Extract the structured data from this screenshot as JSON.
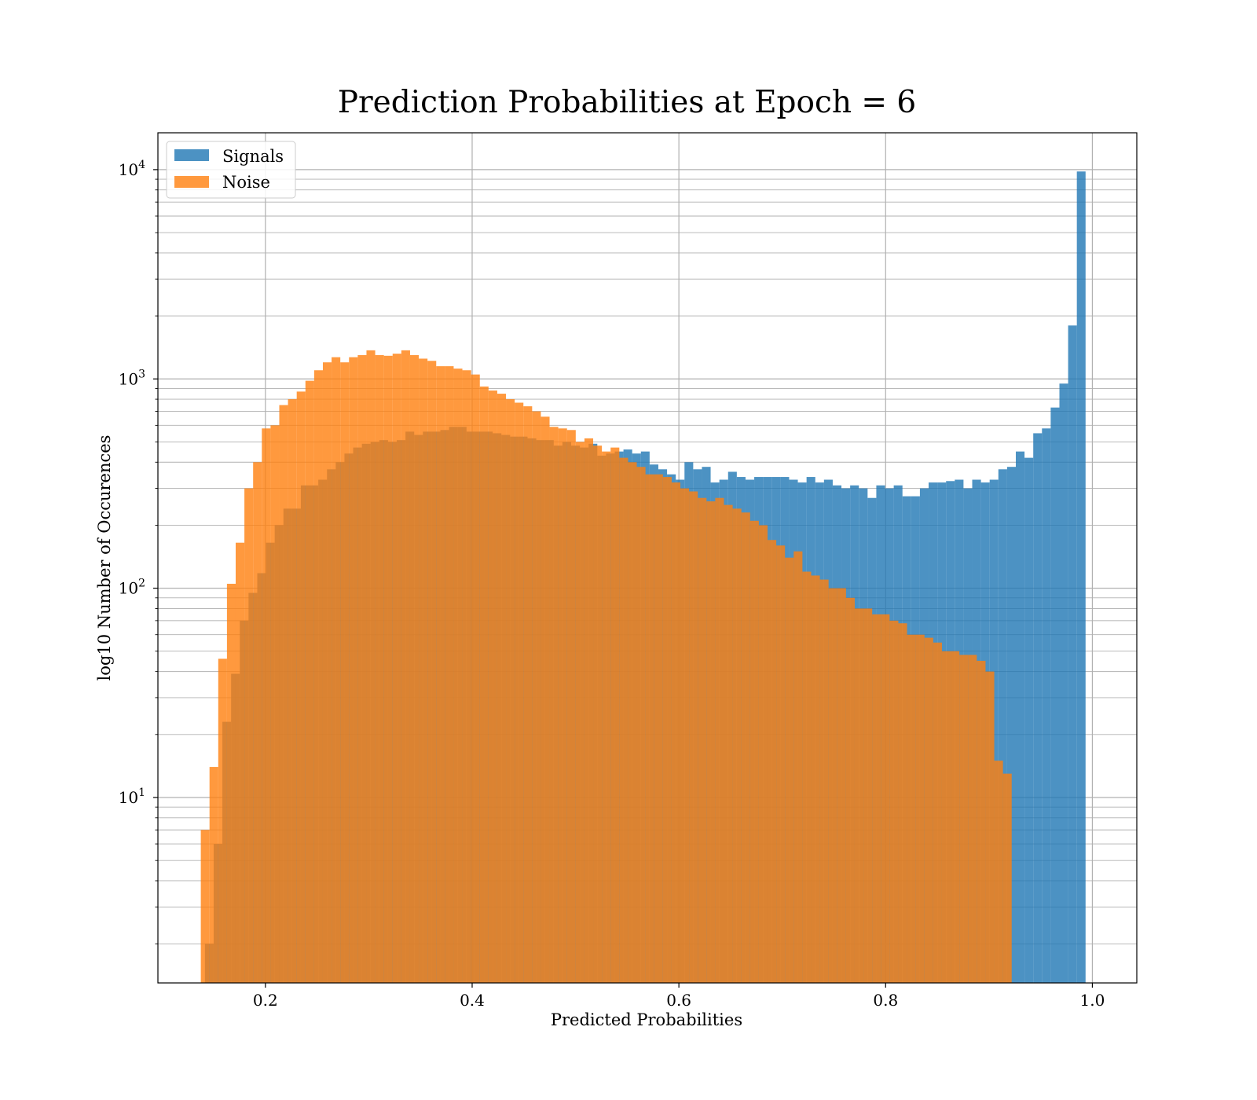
{
  "chart_data": {
    "type": "bar",
    "title": "Prediction Probabilities at Epoch = 6",
    "xlabel": "Predicted Probabilities",
    "ylabel": "log10 Number of Occurences",
    "xlim": [
      0.096,
      1.043
    ],
    "ylim": [
      1.3,
      15000
    ],
    "xscale": "linear",
    "yscale": "log",
    "grid": true,
    "legend_position": "upper-left",
    "xticks": [
      0.2,
      0.4,
      0.6,
      0.8,
      1.0
    ],
    "xtick_labels": [
      "0.2",
      "0.4",
      "0.6",
      "0.8",
      "1.0"
    ],
    "yticks": [
      {
        "value": 10,
        "base": "10",
        "exp": "1"
      },
      {
        "value": 100,
        "base": "10",
        "exp": "2"
      },
      {
        "value": 1000,
        "base": "10",
        "exp": "3"
      },
      {
        "value": 10000,
        "base": "10",
        "exp": "4"
      }
    ],
    "series": [
      {
        "name": "Signals",
        "color": "#1f77b4",
        "opacity": 0.8,
        "bin_start": 0.1415,
        "bin_width": 0.008435,
        "values": [
          2,
          6,
          23,
          39,
          70,
          95,
          118,
          165,
          200,
          240,
          240,
          310,
          310,
          330,
          370,
          400,
          440,
          470,
          490,
          500,
          510,
          500,
          510,
          560,
          540,
          560,
          560,
          570,
          590,
          590,
          560,
          560,
          560,
          550,
          540,
          530,
          530,
          520,
          510,
          510,
          480,
          500,
          480,
          470,
          490,
          430,
          440,
          450,
          460,
          440,
          450,
          390,
          370,
          350,
          330,
          400,
          370,
          380,
          320,
          330,
          360,
          340,
          330,
          340,
          340,
          340,
          340,
          330,
          320,
          340,
          320,
          330,
          310,
          300,
          310,
          300,
          270,
          310,
          300,
          310,
          275,
          275,
          300,
          320,
          320,
          325,
          330,
          300,
          330,
          320,
          330,
          370,
          380,
          450,
          420,
          550,
          580,
          730,
          950,
          1800,
          9800
        ]
      },
      {
        "name": "Noise",
        "color": "#ff7f0e",
        "opacity": 0.8,
        "bin_start": 0.1375,
        "bin_width": 0.008435,
        "values": [
          7,
          14,
          46,
          105,
          165,
          300,
          400,
          580,
          600,
          750,
          800,
          870,
          980,
          1100,
          1200,
          1270,
          1200,
          1270,
          1300,
          1370,
          1300,
          1290,
          1320,
          1370,
          1300,
          1250,
          1220,
          1150,
          1150,
          1120,
          1100,
          1050,
          920,
          880,
          850,
          800,
          770,
          740,
          700,
          660,
          590,
          580,
          570,
          500,
          520,
          480,
          450,
          470,
          420,
          400,
          380,
          350,
          350,
          340,
          320,
          300,
          290,
          270,
          260,
          270,
          250,
          240,
          230,
          210,
          200,
          170,
          160,
          140,
          150,
          120,
          115,
          110,
          100,
          100,
          90,
          80,
          80,
          75,
          75,
          70,
          68,
          60,
          60,
          58,
          55,
          50,
          50,
          48,
          48,
          45,
          40,
          15,
          13
        ]
      }
    ]
  }
}
